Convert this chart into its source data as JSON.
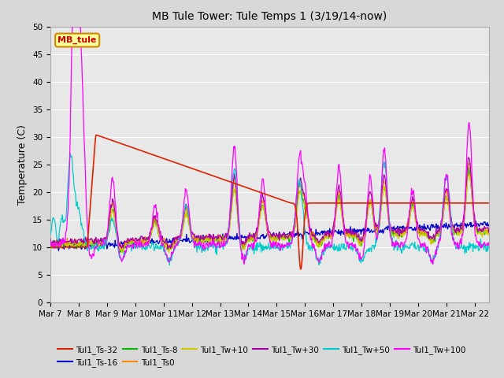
{
  "title": "MB Tule Tower: Tule Temps 1 (3/19/14-now)",
  "ylabel": "Temperature (C)",
  "ylim": [
    0,
    50
  ],
  "yticks": [
    0,
    5,
    10,
    15,
    20,
    25,
    30,
    35,
    40,
    45,
    50
  ],
  "xtick_labels": [
    "Mar 7",
    "Mar 8",
    "Mar 9",
    "Mar 10",
    "Mar 11",
    "Mar 12",
    "Mar 13",
    "Mar 14",
    "Mar 15",
    "Mar 16",
    "Mar 17",
    "Mar 18",
    "Mar 19",
    "Mar 20",
    "Mar 21",
    "Mar 22"
  ],
  "legend_label": "MB_tule",
  "series_colors": {
    "Tul1_Ts-32": "#dd2200",
    "Tul1_Ts-16": "#0000cc",
    "Tul1_Ts-8": "#00bb00",
    "Tul1_Ts0": "#ff8800",
    "Tul1_Tw+10": "#cccc00",
    "Tul1_Tw+30": "#aa00aa",
    "Tul1_Tw+50": "#00cccc",
    "Tul1_Tw+100": "#ff00ff"
  },
  "fig_bg": "#d8d8d8",
  "plot_bg": "#e8e8e8",
  "grid_color": "#ffffff"
}
